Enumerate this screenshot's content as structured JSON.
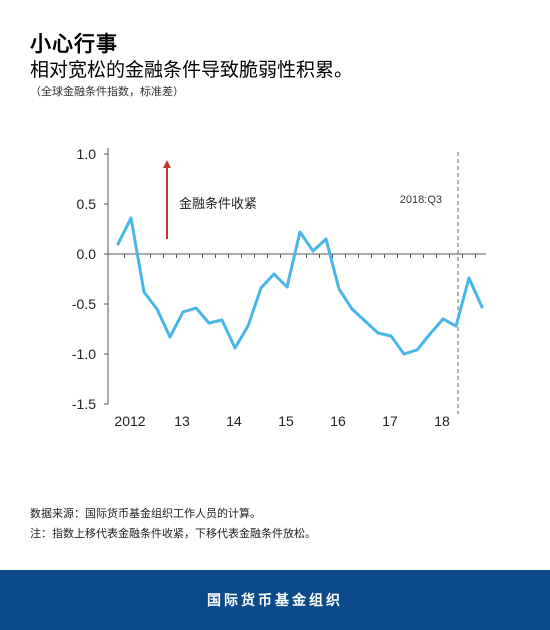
{
  "header": {
    "title": "小心行事",
    "subtitle": "相对宽松的金融条件导致脆弱性积累。",
    "note": "（全球金融条件指数，标准差）"
  },
  "chart_data": {
    "type": "line",
    "title": "",
    "xlabel": "",
    "ylabel": "",
    "ylim": [
      -1.5,
      1.0
    ],
    "yticks": [
      "1.0",
      "0.5",
      "0.0",
      "-0.5",
      "-1.0",
      "-1.5"
    ],
    "xticks": [
      "2012",
      "13",
      "14",
      "15",
      "16",
      "17",
      "18"
    ],
    "grid": false,
    "color": "#48b6e6",
    "series": [
      {
        "values": [
          {
            "x": "2012Q1",
            "y": 0.1
          },
          {
            "x": "2012Q2",
            "y": 0.36
          },
          {
            "x": "2012Q3",
            "y": -0.38
          },
          {
            "x": "2012Q4",
            "y": -0.55
          },
          {
            "x": "2013Q1",
            "y": -0.83
          },
          {
            "x": "2013Q2",
            "y": -0.58
          },
          {
            "x": "2013Q3",
            "y": -0.54
          },
          {
            "x": "2013Q4",
            "y": -0.69
          },
          {
            "x": "2014Q1",
            "y": -0.66
          },
          {
            "x": "2014Q2",
            "y": -0.94
          },
          {
            "x": "2014Q3",
            "y": -0.72
          },
          {
            "x": "2014Q4",
            "y": -0.34
          },
          {
            "x": "2015Q1",
            "y": -0.2
          },
          {
            "x": "2015Q2",
            "y": -0.33
          },
          {
            "x": "2015Q3",
            "y": 0.22
          },
          {
            "x": "2015Q4",
            "y": 0.03
          },
          {
            "x": "2016Q1",
            "y": 0.15
          },
          {
            "x": "2016Q2",
            "y": -0.35
          },
          {
            "x": "2016Q3",
            "y": -0.55
          },
          {
            "x": "2016Q4",
            "y": -0.67
          },
          {
            "x": "2017Q1",
            "y": -0.79
          },
          {
            "x": "2017Q2",
            "y": -0.82
          },
          {
            "x": "2017Q3",
            "y": -1.0
          },
          {
            "x": "2017Q4",
            "y": -0.96
          },
          {
            "x": "2018Q1",
            "y": -0.8
          },
          {
            "x": "2018Q2",
            "y": -0.65
          },
          {
            "x": "2018Q3",
            "y": -0.72
          },
          {
            "x": "2018Q4",
            "y": -0.24
          },
          {
            "x": "2019Q1",
            "y": -0.53
          }
        ]
      }
    ],
    "annotations": {
      "arrow_label": "金融条件收紧",
      "vline_x": "2018Q3",
      "vline_label": "2018:Q3"
    },
    "colors": {
      "line": "#48b6e6",
      "arrow": "#c0392b",
      "axis": "#555555"
    }
  },
  "footer_notes": {
    "source": "数据来源：国际货币基金组织工作人员的计算。",
    "note": "注：指数上移代表金融条件收紧，下移代表金融条件放松。"
  },
  "footer": {
    "label": "国际货币基金组织"
  }
}
